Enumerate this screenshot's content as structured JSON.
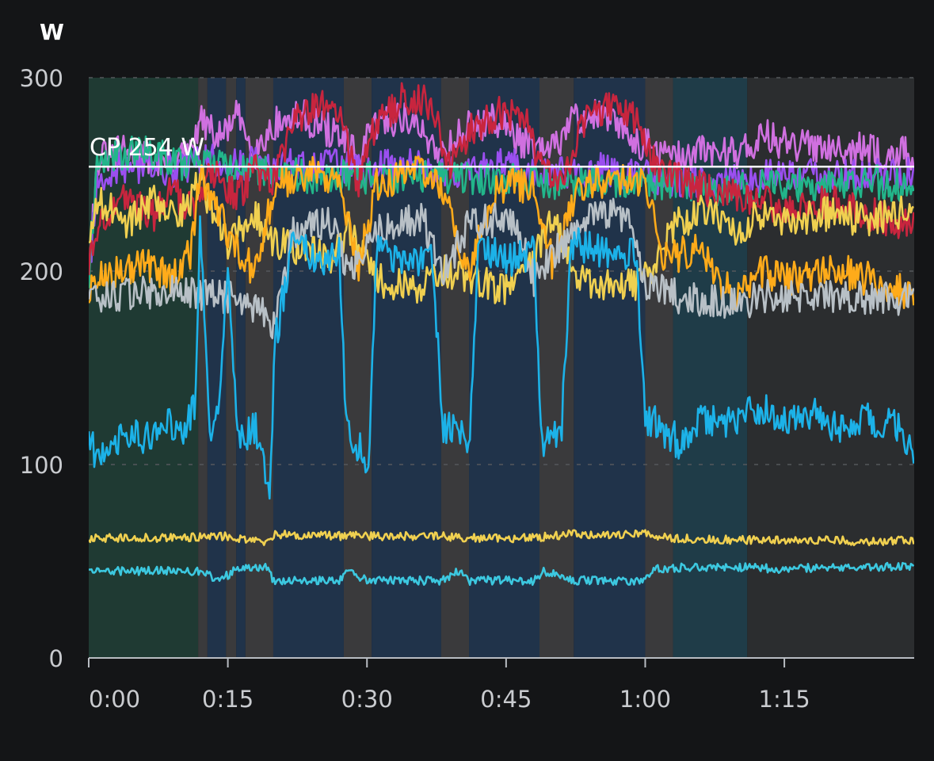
{
  "chart_data": {
    "type": "line",
    "unit_label": "W",
    "x_unit": "elapsed time (minutes)",
    "xlim": [
      0,
      89
    ],
    "ylim": [
      0,
      300
    ],
    "x_ticks": [
      {
        "value": 0,
        "label": "0:00"
      },
      {
        "value": 15,
        "label": "0:15"
      },
      {
        "value": 30,
        "label": "0:30"
      },
      {
        "value": 45,
        "label": "0:45"
      },
      {
        "value": 60,
        "label": "1:00"
      },
      {
        "value": 75,
        "label": "1:15"
      }
    ],
    "y_ticks": [
      0,
      100,
      200,
      300
    ],
    "grid": "horizontal dashed",
    "reference_line": {
      "label": "CP 254 W",
      "value": 254,
      "color": "#ffffff"
    },
    "intervals": [
      {
        "start": 0,
        "end": 11.8,
        "color": "#1f3a33"
      },
      {
        "start": 11.8,
        "end": 12.8,
        "color": "#3a3a3c"
      },
      {
        "start": 12.8,
        "end": 14.8,
        "color": "#20334a"
      },
      {
        "start": 14.8,
        "end": 15.9,
        "color": "#3a3a3c"
      },
      {
        "start": 15.9,
        "end": 16.9,
        "color": "#20334a"
      },
      {
        "start": 16.9,
        "end": 19.9,
        "color": "#3a3a3c"
      },
      {
        "start": 19.9,
        "end": 27.5,
        "color": "#20334a"
      },
      {
        "start": 27.5,
        "end": 30.5,
        "color": "#3a3a3c"
      },
      {
        "start": 30.5,
        "end": 38.0,
        "color": "#20334a"
      },
      {
        "start": 38.0,
        "end": 41.0,
        "color": "#3a3a3c"
      },
      {
        "start": 41.0,
        "end": 48.6,
        "color": "#20334a"
      },
      {
        "start": 48.6,
        "end": 52.3,
        "color": "#3a3a3c"
      },
      {
        "start": 52.3,
        "end": 60.0,
        "color": "#20334a"
      },
      {
        "start": 60.0,
        "end": 63.0,
        "color": "#3a3a3c"
      },
      {
        "start": 63.0,
        "end": 71.0,
        "color": "#1f3c48"
      },
      {
        "start": 71.0,
        "end": 89.0,
        "color": "#2b2d2f"
      }
    ],
    "series": [
      {
        "color": "#d070e0",
        "values": [
          [
            0,
            205
          ],
          [
            1,
            258
          ],
          [
            4,
            262
          ],
          [
            8,
            256
          ],
          [
            11,
            260
          ],
          [
            12,
            278
          ],
          [
            14,
            268
          ],
          [
            16,
            280
          ],
          [
            18,
            262
          ],
          [
            20,
            276
          ],
          [
            23,
            280
          ],
          [
            27,
            270
          ],
          [
            29,
            258
          ],
          [
            31,
            276
          ],
          [
            34,
            280
          ],
          [
            38,
            262
          ],
          [
            41,
            275
          ],
          [
            44,
            278
          ],
          [
            48,
            262
          ],
          [
            50,
            262
          ],
          [
            52,
            278
          ],
          [
            55,
            281
          ],
          [
            60,
            265
          ],
          [
            63,
            258
          ],
          [
            66,
            262
          ],
          [
            70,
            262
          ],
          [
            73,
            270
          ],
          [
            76,
            264
          ],
          [
            80,
            266
          ],
          [
            84,
            262
          ],
          [
            89,
            260
          ]
        ]
      },
      {
        "color": "#9b4ff0",
        "values": [
          [
            0,
            198
          ],
          [
            1,
            250
          ],
          [
            5,
            254
          ],
          [
            10,
            252
          ],
          [
            12,
            258
          ],
          [
            16,
            256
          ],
          [
            20,
            254
          ],
          [
            26,
            255
          ],
          [
            30,
            252
          ],
          [
            34,
            256
          ],
          [
            40,
            250
          ],
          [
            45,
            255
          ],
          [
            50,
            250
          ],
          [
            55,
            253
          ],
          [
            60,
            250
          ],
          [
            64,
            246
          ],
          [
            68,
            245
          ],
          [
            72,
            248
          ],
          [
            76,
            250
          ],
          [
            80,
            248
          ],
          [
            84,
            250
          ],
          [
            89,
            250
          ]
        ]
      },
      {
        "color": "#22b58a",
        "values": [
          [
            0,
            200
          ],
          [
            1,
            258
          ],
          [
            5,
            262
          ],
          [
            10,
            256
          ],
          [
            14,
            254
          ],
          [
            20,
            250
          ],
          [
            30,
            248
          ],
          [
            40,
            248
          ],
          [
            50,
            246
          ],
          [
            60,
            246
          ],
          [
            65,
            244
          ],
          [
            70,
            242
          ],
          [
            75,
            245
          ],
          [
            80,
            244
          ],
          [
            85,
            246
          ],
          [
            89,
            244
          ]
        ]
      },
      {
        "color": "#c8253e",
        "values": [
          [
            0,
            200
          ],
          [
            1,
            226
          ],
          [
            4,
            238
          ],
          [
            7,
            228
          ],
          [
            9,
            242
          ],
          [
            11,
            232
          ],
          [
            13,
            252
          ],
          [
            16,
            238
          ],
          [
            18,
            252
          ],
          [
            20,
            246
          ],
          [
            22,
            276
          ],
          [
            25,
            286
          ],
          [
            27,
            280
          ],
          [
            29,
            246
          ],
          [
            31,
            276
          ],
          [
            34,
            290
          ],
          [
            37,
            286
          ],
          [
            39,
            254
          ],
          [
            41,
            272
          ],
          [
            44,
            282
          ],
          [
            47,
            280
          ],
          [
            49,
            250
          ],
          [
            51,
            246
          ],
          [
            53,
            275
          ],
          [
            56,
            284
          ],
          [
            59,
            280
          ],
          [
            61,
            255
          ],
          [
            64,
            246
          ],
          [
            68,
            240
          ],
          [
            72,
            236
          ],
          [
            76,
            232
          ],
          [
            80,
            236
          ],
          [
            84,
            230
          ],
          [
            89,
            222
          ]
        ]
      },
      {
        "color": "#f0d050",
        "values": [
          [
            0,
            210
          ],
          [
            1,
            238
          ],
          [
            4,
            224
          ],
          [
            7,
            236
          ],
          [
            10,
            230
          ],
          [
            12,
            246
          ],
          [
            15,
            214
          ],
          [
            18,
            228
          ],
          [
            20,
            214
          ],
          [
            23,
            212
          ],
          [
            26,
            206
          ],
          [
            28,
            222
          ],
          [
            31,
            196
          ],
          [
            35,
            190
          ],
          [
            38,
            200
          ],
          [
            41,
            196
          ],
          [
            45,
            190
          ],
          [
            48,
            204
          ],
          [
            50,
            230
          ],
          [
            53,
            196
          ],
          [
            57,
            190
          ],
          [
            60,
            196
          ],
          [
            63,
            222
          ],
          [
            66,
            232
          ],
          [
            70,
            222
          ],
          [
            73,
            230
          ],
          [
            76,
            226
          ],
          [
            80,
            230
          ],
          [
            84,
            226
          ],
          [
            89,
            232
          ]
        ]
      },
      {
        "color": "#ffab1a",
        "values": [
          [
            0,
            190
          ],
          [
            1,
            195
          ],
          [
            3,
            200
          ],
          [
            6,
            205
          ],
          [
            9,
            195
          ],
          [
            11,
            210
          ],
          [
            12,
            250
          ],
          [
            14,
            230
          ],
          [
            16,
            210
          ],
          [
            18,
            200
          ],
          [
            20,
            244
          ],
          [
            24,
            252
          ],
          [
            27,
            246
          ],
          [
            29,
            200
          ],
          [
            31,
            244
          ],
          [
            35,
            252
          ],
          [
            38,
            244
          ],
          [
            41,
            200
          ],
          [
            44,
            244
          ],
          [
            48,
            244
          ],
          [
            50,
            204
          ],
          [
            53,
            244
          ],
          [
            57,
            248
          ],
          [
            60,
            244
          ],
          [
            62,
            206
          ],
          [
            66,
            212
          ],
          [
            68,
            194
          ],
          [
            70,
            186
          ],
          [
            72,
            200
          ],
          [
            76,
            196
          ],
          [
            80,
            202
          ],
          [
            84,
            196
          ],
          [
            89,
            188
          ]
        ]
      },
      {
        "color": "#b8c0c6",
        "values": [
          [
            0,
            185
          ],
          [
            5,
            188
          ],
          [
            10,
            190
          ],
          [
            13,
            188
          ],
          [
            16,
            186
          ],
          [
            19,
            178
          ],
          [
            20,
            172
          ],
          [
            22,
            220
          ],
          [
            26,
            226
          ],
          [
            28,
            198
          ],
          [
            31,
            222
          ],
          [
            36,
            228
          ],
          [
            38,
            198
          ],
          [
            41,
            224
          ],
          [
            46,
            228
          ],
          [
            48,
            196
          ],
          [
            53,
            226
          ],
          [
            58,
            230
          ],
          [
            60,
            194
          ],
          [
            64,
            186
          ],
          [
            70,
            184
          ],
          [
            75,
            188
          ],
          [
            80,
            186
          ],
          [
            85,
            186
          ],
          [
            89,
            186
          ]
        ]
      },
      {
        "color": "#1cb2e8",
        "values": [
          [
            0,
            110
          ],
          [
            2,
            102
          ],
          [
            4,
            118
          ],
          [
            6,
            112
          ],
          [
            8,
            124
          ],
          [
            10,
            118
          ],
          [
            11.5,
            130
          ],
          [
            12,
            230
          ],
          [
            13,
            116
          ],
          [
            14,
            128
          ],
          [
            15,
            210
          ],
          [
            16,
            112
          ],
          [
            17,
            116
          ],
          [
            18,
            120
          ],
          [
            19,
            100
          ],
          [
            19.5,
            75
          ],
          [
            20,
            160
          ],
          [
            22,
            215
          ],
          [
            25,
            205
          ],
          [
            27,
            210
          ],
          [
            27.8,
            120
          ],
          [
            29,
            110
          ],
          [
            30.2,
            100
          ],
          [
            31,
            210
          ],
          [
            34,
            205
          ],
          [
            37,
            208
          ],
          [
            38.2,
            120
          ],
          [
            40,
            115
          ],
          [
            41,
            110
          ],
          [
            42,
            215
          ],
          [
            45,
            205
          ],
          [
            48,
            210
          ],
          [
            48.8,
            108
          ],
          [
            51,
            120
          ],
          [
            52,
            215
          ],
          [
            55,
            210
          ],
          [
            59,
            208
          ],
          [
            60,
            125
          ],
          [
            62,
            118
          ],
          [
            64,
            110
          ],
          [
            66,
            124
          ],
          [
            70,
            120
          ],
          [
            72,
            130
          ],
          [
            75,
            122
          ],
          [
            78,
            128
          ],
          [
            81,
            118
          ],
          [
            84,
            124
          ],
          [
            87,
            120
          ],
          [
            89,
            102
          ]
        ]
      },
      {
        "color": "#f0d050",
        "values": [
          [
            0,
            62
          ],
          [
            5,
            62
          ],
          [
            10,
            62
          ],
          [
            15,
            63
          ],
          [
            19,
            60
          ],
          [
            20,
            64
          ],
          [
            27,
            63
          ],
          [
            30,
            63
          ],
          [
            38,
            63
          ],
          [
            41,
            62
          ],
          [
            48,
            62
          ],
          [
            52,
            64
          ],
          [
            60,
            64
          ],
          [
            63,
            62
          ],
          [
            70,
            61
          ],
          [
            75,
            61
          ],
          [
            80,
            61
          ],
          [
            85,
            60
          ],
          [
            89,
            61
          ]
        ]
      },
      {
        "color": "#3cc8e0",
        "values": [
          [
            0,
            45
          ],
          [
            5,
            45
          ],
          [
            10,
            45
          ],
          [
            12,
            45
          ],
          [
            14,
            40
          ],
          [
            16,
            46
          ],
          [
            19,
            47
          ],
          [
            20,
            40
          ],
          [
            27,
            40
          ],
          [
            28,
            45
          ],
          [
            30,
            40
          ],
          [
            38,
            40
          ],
          [
            40,
            45
          ],
          [
            41,
            40
          ],
          [
            48,
            40
          ],
          [
            49,
            45
          ],
          [
            52,
            40
          ],
          [
            60,
            40
          ],
          [
            61,
            46
          ],
          [
            65,
            47
          ],
          [
            70,
            47
          ],
          [
            75,
            46
          ],
          [
            80,
            47
          ],
          [
            85,
            47
          ],
          [
            89,
            47
          ]
        ]
      }
    ]
  }
}
